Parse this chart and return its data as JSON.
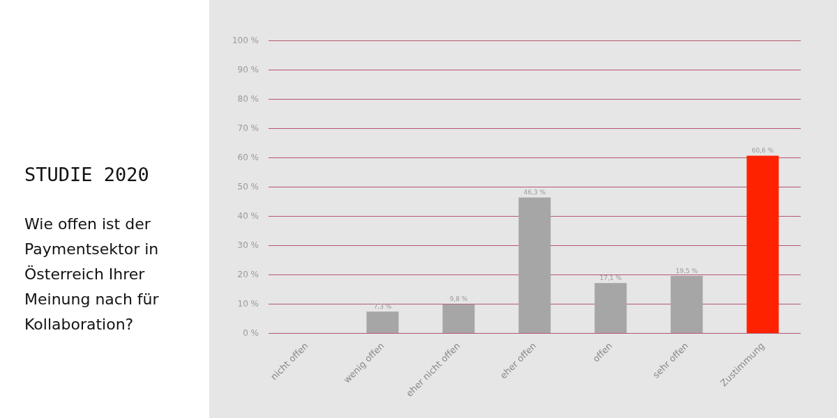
{
  "chart_data": {
    "type": "bar",
    "title": "STUDIE 2020",
    "subtitle": "Wie offen ist der Paymentsektor in Österreich Ihrer Meinung nach für Kollaboration?",
    "categories": [
      "nicht offen",
      "wenig offen",
      "eher nicht offen",
      "eher offen",
      "offen",
      "sehr offen",
      "Zustimmung"
    ],
    "values": [
      0,
      7.3,
      9.8,
      46.3,
      17.1,
      19.5,
      60.6
    ],
    "value_labels": [
      null,
      "7,3 %",
      "9,8 %",
      "46,3 %",
      "17,1 %",
      "19,5 %",
      "60,6 %"
    ],
    "colors": [
      "#a6a6a6",
      "#a6a6a6",
      "#a6a6a6",
      "#a6a6a6",
      "#a6a6a6",
      "#a6a6a6",
      "#ff2200"
    ],
    "ylim": [
      0,
      100
    ],
    "yticks": [
      {
        "value": 0,
        "label": "0 %"
      },
      {
        "value": 10,
        "label": "10 %"
      },
      {
        "value": 20,
        "label": "20 %"
      },
      {
        "value": 30,
        "label": "30 %"
      },
      {
        "value": 40,
        "label": "40 %"
      },
      {
        "value": 50,
        "label": "50 %"
      },
      {
        "value": 60,
        "label": "60 %"
      },
      {
        "value": 70,
        "label": "70 %"
      },
      {
        "value": 80,
        "label": "80 %"
      },
      {
        "value": 90,
        "label": "90 %"
      },
      {
        "value": 100,
        "label": "100 %"
      }
    ],
    "grid": "y"
  }
}
